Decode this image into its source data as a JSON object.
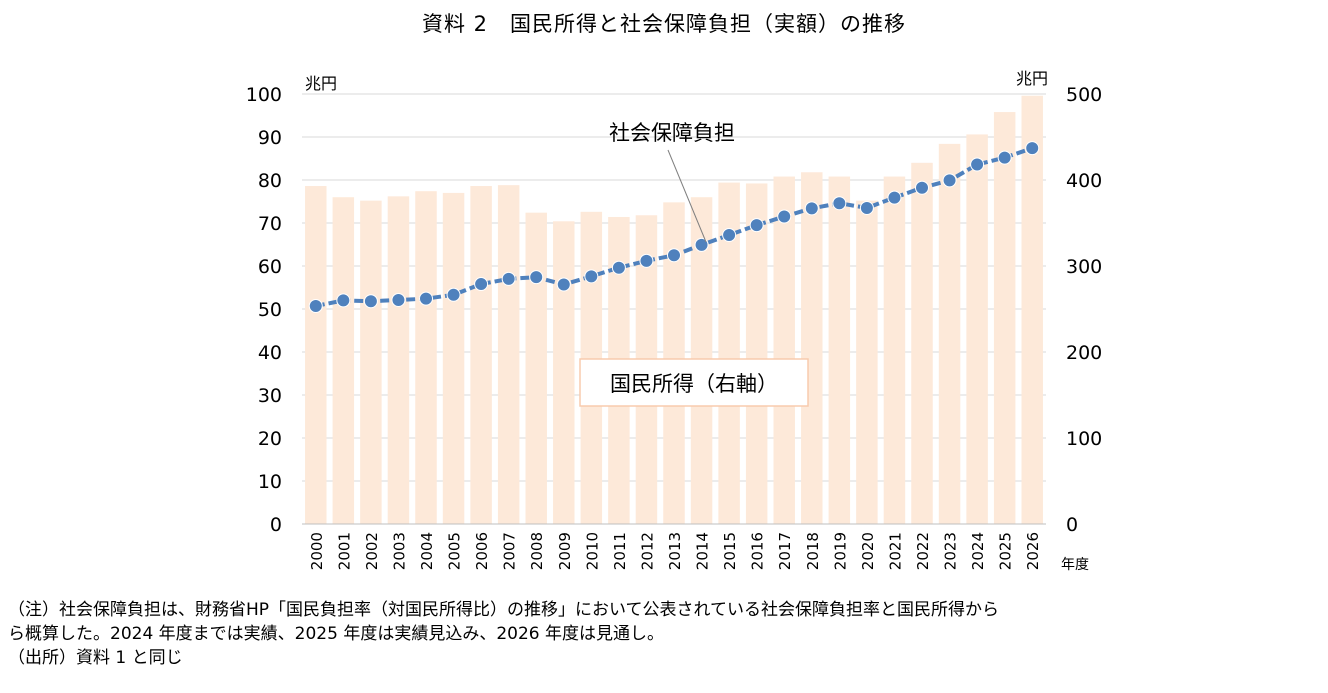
{
  "title": "資料 2　国民所得と社会保障負担（実額）の推移",
  "chart_data": {
    "type": "bar+line",
    "categories": [
      "2000",
      "2001",
      "2002",
      "2003",
      "2004",
      "2005",
      "2006",
      "2007",
      "2008",
      "2009",
      "2010",
      "2011",
      "2012",
      "2013",
      "2014",
      "2015",
      "2016",
      "2017",
      "2018",
      "2019",
      "2020",
      "2021",
      "2022",
      "2023",
      "2024",
      "2025",
      "2026"
    ],
    "series": [
      {
        "name": "社会保障負担",
        "type": "line",
        "axis": "left",
        "color": "#4f81bd",
        "values": [
          50.7,
          52.0,
          51.8,
          52.1,
          52.4,
          53.3,
          55.8,
          57.0,
          57.4,
          55.7,
          57.6,
          59.6,
          61.2,
          62.5,
          64.9,
          67.2,
          69.5,
          71.5,
          73.4,
          74.6,
          73.5,
          75.9,
          78.2,
          79.9,
          83.6,
          85.2,
          87.4
        ]
      },
      {
        "name": "国民所得（右軸）",
        "type": "bar",
        "axis": "right",
        "color": "#fde9d9",
        "values": [
          393,
          380,
          376,
          381,
          387,
          385,
          393,
          394,
          362,
          352,
          363,
          357,
          359,
          374,
          380,
          397,
          396,
          404,
          409,
          404,
          376,
          404,
          420,
          442,
          453,
          479,
          498
        ]
      }
    ],
    "y_left": {
      "unit": "兆円",
      "ylim": [
        0,
        100
      ],
      "ticks": [
        0,
        10,
        20,
        30,
        40,
        50,
        60,
        70,
        80,
        90,
        100
      ]
    },
    "y_right": {
      "unit": "兆円",
      "ylim": [
        0,
        500
      ],
      "ticks": [
        0,
        100,
        200,
        300,
        400,
        500
      ]
    },
    "xlabel": "年度",
    "grid": "horizontal",
    "annotations": {
      "line_label": "社会保障負担",
      "bar_label": "国民所得（右軸）"
    }
  },
  "notes": [
    "（注）社会保障負担は、財務省HP「国民負担率（対国民所得比）の推移」において公表されている社会保障負担率と国民所得から",
    "ら概算した。2024 年度までは実績、2025 年度は実績見込み、2026 年度は見通し。",
    "（出所）資料 1 と同じ"
  ]
}
